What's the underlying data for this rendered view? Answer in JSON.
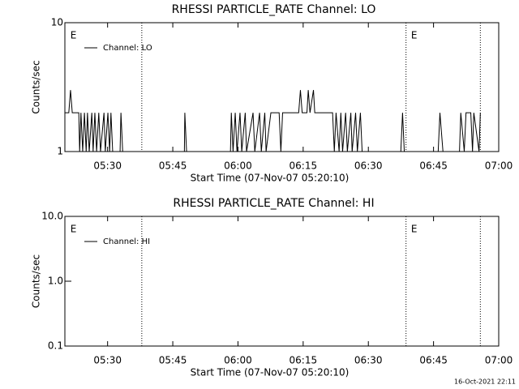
{
  "chart_data": [
    {
      "type": "line",
      "title": "RHESSI PARTICLE_RATE Channel: LO",
      "x_label": "Start Time (07-Nov-07 05:20:10)",
      "y_label": "Counts/sec",
      "log_y": true,
      "xlim": [
        0,
        99.83
      ],
      "ylim": [
        1,
        10
      ],
      "xticks": [
        {
          "value": 9.83,
          "label": "05:30"
        },
        {
          "value": 24.83,
          "label": "05:45"
        },
        {
          "value": 39.83,
          "label": "06:00"
        },
        {
          "value": 54.83,
          "label": "06:15"
        },
        {
          "value": 69.83,
          "label": "06:30"
        },
        {
          "value": 84.83,
          "label": "06:45"
        },
        {
          "value": 99.83,
          "label": "07:00"
        }
      ],
      "yticks": [
        1,
        10
      ],
      "vlines": [
        17.7,
        78.5,
        95.6
      ],
      "annotations": [
        {
          "text": "E",
          "x": 0.7
        },
        {
          "text": "E",
          "x": 79.1
        }
      ],
      "series": [
        {
          "name": "Channel: LO",
          "color": "#000000",
          "x": [
            0,
            0.9,
            1.3,
            1.7,
            3.2,
            3.4,
            3.7,
            4.1,
            4.5,
            4.9,
            5.2,
            5.6,
            6.2,
            6.5,
            6.9,
            7.3,
            7.8,
            8.2,
            9.0,
            9.3,
            9.9,
            10.3,
            10.6,
            11.0,
            12.7,
            12.9,
            13.3,
            27.5,
            27.6,
            28.0,
            38.1,
            38.3,
            38.7,
            39.2,
            39.6,
            40.3,
            40.7,
            41.5,
            41.8,
            43.3,
            43.7,
            44.8,
            45.2,
            46.0,
            46.3,
            47.4,
            49.3,
            49.7,
            50.1,
            53.8,
            54.2,
            54.6,
            55.7,
            56.0,
            56.4,
            57.2,
            57.5,
            61.6,
            62.0,
            62.4,
            63.1,
            63.5,
            63.9,
            64.6,
            65.0,
            65.8,
            66.1,
            66.9,
            67.3,
            68.0,
            68.4,
            77.3,
            77.7,
            78.1,
            85.9,
            86.3,
            87.0,
            90.8,
            91.1,
            91.9,
            92.3,
            93.4,
            93.8,
            94.1,
            95.3,
            95.6
          ],
          "values": [
            2,
            2,
            3,
            2,
            2,
            1,
            2,
            1,
            2,
            1,
            2,
            1,
            2,
            1,
            2,
            1,
            2,
            1,
            2,
            1,
            2,
            1,
            2,
            1,
            1,
            2,
            1,
            1,
            2,
            1,
            1,
            2,
            1,
            2,
            1,
            2,
            1,
            2,
            1,
            2,
            1,
            2,
            1,
            2,
            1,
            2,
            2,
            1,
            2,
            2,
            3,
            2,
            2,
            3,
            2,
            3,
            2,
            2,
            1,
            2,
            1,
            2,
            1,
            2,
            1,
            2,
            1,
            2,
            1,
            2,
            1,
            1,
            2,
            1,
            1,
            2,
            1,
            1,
            2,
            1,
            2,
            2,
            1,
            2,
            1,
            2
          ]
        }
      ]
    },
    {
      "type": "line",
      "title": "RHESSI PARTICLE_RATE Channel: HI",
      "x_label": "Start Time (07-Nov-07 05:20:10)",
      "y_label": "Counts/sec",
      "log_y": true,
      "xlim": [
        0,
        99.83
      ],
      "ylim": [
        0.1,
        10
      ],
      "xticks": [
        {
          "value": 9.83,
          "label": "05:30"
        },
        {
          "value": 24.83,
          "label": "05:45"
        },
        {
          "value": 39.83,
          "label": "06:00"
        },
        {
          "value": 54.83,
          "label": "06:15"
        },
        {
          "value": 69.83,
          "label": "06:30"
        },
        {
          "value": 84.83,
          "label": "06:45"
        },
        {
          "value": 99.83,
          "label": "07:00"
        }
      ],
      "yticks": [
        0.1,
        {
          "value": 1,
          "label": "1.0"
        },
        {
          "value": 10,
          "label": "10.0"
        }
      ],
      "vlines": [
        17.7,
        78.5,
        95.6
      ],
      "annotations": [
        {
          "text": "E",
          "x": 0.7
        },
        {
          "text": "E",
          "x": 79.1
        }
      ],
      "series": [
        {
          "name": "Channel: HI",
          "color": "#000000",
          "x": [],
          "values": []
        }
      ]
    }
  ],
  "footer": "16-Oct-2021 22:11"
}
